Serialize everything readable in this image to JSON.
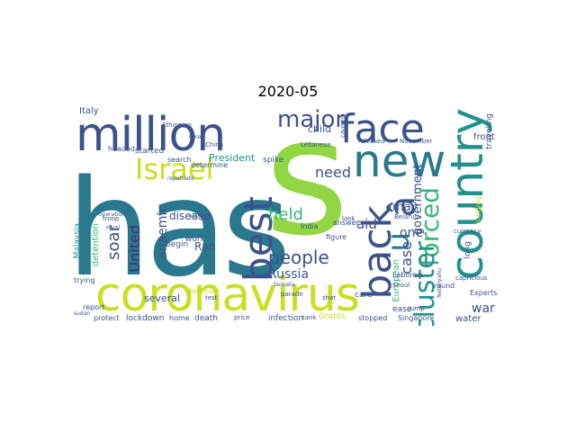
{
  "title": "2020-05",
  "palette": {
    "yellow_green": "#c8e020",
    "lime": "#90d743",
    "teal": "#2a788e",
    "blue": "#3b528b",
    "purple": "#472d7b",
    "green": "#35b779",
    "cyan": "#21918c",
    "light_green": "#5ec962",
    "dark_purple": "#440154"
  },
  "words": {
    "has": "has",
    "coronavirus": "coronavirus",
    "million": "million",
    "face": "face",
    "new": "new",
    "country": "country",
    "israel": "Israel",
    "major": "major",
    "best": "best",
    "back": "back",
    "u": "u",
    "a_circ": "â",
    "forced": "forced",
    "cluster": "cluster",
    "people": "people",
    "held": "held",
    "soar": "soar",
    "united": "United",
    "anaemic": "anaemic",
    "russia": "Russia",
    "need": "need",
    "aid": "aid",
    "may": "may",
    "one": "one",
    "case": "case",
    "government": "government",
    "war": "war",
    "president": "President",
    "italy": "Italy",
    "child": "child",
    "spike": "spike",
    "ran": "Ran",
    "disease": "disease",
    "several": "several",
    "detention": "detention",
    "malaysia": "Malaysia",
    "european": "European",
    "lockdown": "lockdown",
    "death": "death",
    "infection": "infection",
    "grants": "Grants",
    "stopped": "stopped",
    "singapore": "Singapore",
    "water": "water",
    "ease": "ease",
    "care": "care",
    "report": "report",
    "protect": "protect",
    "trying": "trying",
    "experts": "Experts",
    "round": "round",
    "front": "front",
    "long": "long",
    "traveling": "traveling",
    "surging": "surging",
    "figure": "figure",
    "answer": "answer",
    "began": "begin",
    "work": "work",
    "started": "started",
    "search": "search",
    "determine": "determine",
    "headed": "headed",
    "india": "India",
    "laborers": "Laborers",
    "capricious": "capricious",
    "domitory": "domitory",
    "parade": "parade",
    "home": "home",
    "released": "released",
    "lebanese": "Lebanese",
    "currency": "currency",
    "look": "look",
    "troop": "troop",
    "rival": "rival",
    "belarus": "Belarus",
    "seoul": "Seoul",
    "shot": "shot",
    "korea": "Korea",
    "china": "China",
    "ethiopian": "Ethiopian",
    "november": "November",
    "jump": "jump",
    "sudan": "sudan",
    "price": "price",
    "tank": "tank",
    "test": "test",
    "caused": "caused",
    "netanyahu": "Netanyahu",
    "somalia": "Somalia",
    "repatriate": "repatriate",
    "operation": "operation",
    "younger": "younger"
  }
}
